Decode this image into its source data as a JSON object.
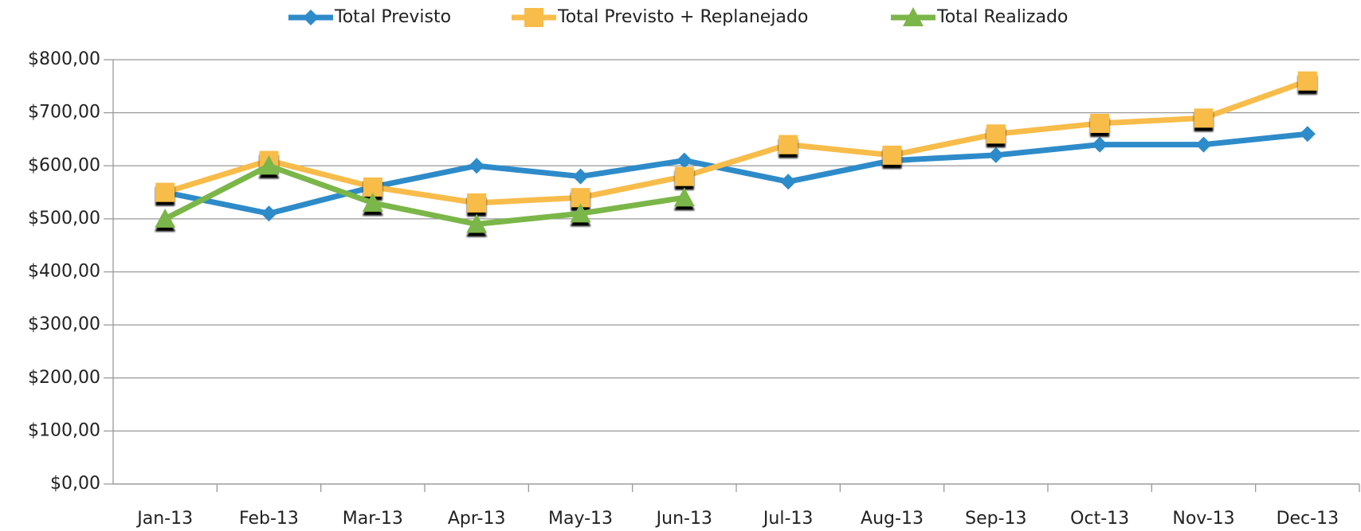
{
  "chart_data": {
    "type": "line",
    "categories": [
      "Jan-13",
      "Feb-13",
      "Mar-13",
      "Apr-13",
      "May-13",
      "Jun-13",
      "Jul-13",
      "Aug-13",
      "Sep-13",
      "Oct-13",
      "Nov-13",
      "Dec-13"
    ],
    "series": [
      {
        "name": "Total Previsto",
        "color": "#2e8bc9",
        "marker": "diamond",
        "values": [
          550,
          510,
          560,
          600,
          580,
          610,
          570,
          610,
          620,
          640,
          640,
          660
        ]
      },
      {
        "name": "Total Previsto + Replanejado",
        "color": "#f8bc4a",
        "marker": "square",
        "values": [
          550,
          610,
          560,
          530,
          540,
          580,
          640,
          620,
          660,
          680,
          690,
          760
        ]
      },
      {
        "name": "Total Realizado",
        "color": "#7ab648",
        "marker": "triangle",
        "values": [
          500,
          600,
          530,
          490,
          510,
          540,
          null,
          null,
          null,
          null,
          null,
          null
        ]
      }
    ],
    "ylim": [
      0,
      800
    ],
    "yticks": [
      {
        "value": 0,
        "label": "$0,00"
      },
      {
        "value": 100,
        "label": "$100,00"
      },
      {
        "value": 200,
        "label": "$200,00"
      },
      {
        "value": 300,
        "label": "$300,00"
      },
      {
        "value": 400,
        "label": "$400,00"
      },
      {
        "value": 500,
        "label": "$500,00"
      },
      {
        "value": 600,
        "label": "$600,00"
      },
      {
        "value": 700,
        "label": "$700,00"
      },
      {
        "value": 800,
        "label": "$800,00"
      }
    ],
    "grid": true,
    "legend": "top"
  }
}
